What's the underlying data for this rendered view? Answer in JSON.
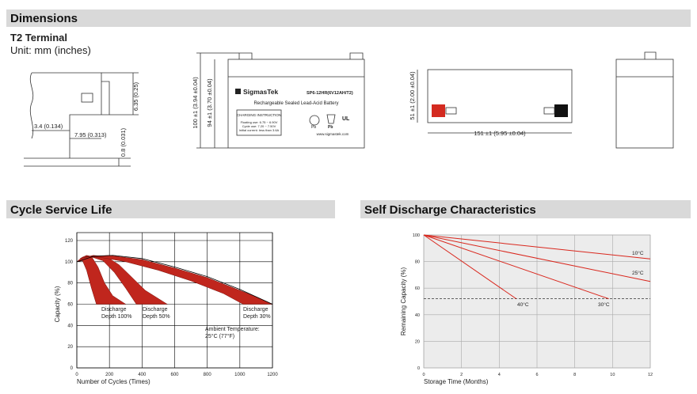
{
  "dimensions": {
    "title": "Dimensions",
    "terminal": "T2 Terminal",
    "unit": "Unit: mm (inches)",
    "labels": {
      "tab_height": "6.35 (0.25)",
      "tab_offset": "3.4 (0.134)",
      "tab_width": "7.95 (0.313)",
      "tab_thickness": "0.8 (0.031)",
      "total_height": "100 ±1 (3.94 ±0.04)",
      "case_height": "94 ±1 (3.70 ±0.04)",
      "width": "51 ±1 (2.00 ±0.04)",
      "length": "151 ±1 (5.95 ±0.04)"
    },
    "battery_label": {
      "brand": "SigmasTek",
      "model": "SP6-12HR(6V12AH/T2)",
      "description": "Rechargeable Sealed Lead-Acid Battery",
      "charging_title": "CHARGING INSTRUCTION",
      "charging_lines": [
        "Floating use: 6.75 ~ 6.90V",
        "Cycle use: 7.20 ~ 7.50V",
        "Initial current: less than 3.6A"
      ],
      "pb": "Pb",
      "website": "www.sigmastek.com"
    }
  },
  "chart_data": [
    {
      "type": "band",
      "title": "Cycle Service Life",
      "x_label": "Number of Cycles (Times)",
      "y_label": "Capacity (%)",
      "xlim": [
        0,
        1200
      ],
      "ylim": [
        0,
        120
      ],
      "xticks": [
        0,
        200,
        400,
        600,
        800,
        1000,
        1200
      ],
      "yticks": [
        0,
        20,
        40,
        60,
        80,
        100,
        120
      ],
      "grid": true,
      "series": [
        {
          "color": "#c0261d",
          "x": [
            0,
            30,
            60,
            90,
            130,
            170,
            220,
            300,
            120,
            90,
            60,
            35
          ],
          "y": [
            100,
            104,
            106,
            105,
            95,
            80,
            68,
            60,
            60,
            75,
            92,
            101
          ]
        },
        {
          "color": "#c0261d",
          "x": [
            20,
            100,
            180,
            260,
            340,
            420,
            555,
            365,
            300,
            230,
            160,
            80
          ],
          "y": [
            103,
            106,
            105,
            97,
            85,
            73,
            60,
            60,
            75,
            90,
            101,
            105
          ]
        },
        {
          "color": "#c0261d",
          "x": [
            50,
            200,
            400,
            600,
            800,
            950,
            1100,
            1200,
            1020,
            900,
            700,
            500,
            300,
            150
          ],
          "y": [
            105,
            106,
            102,
            94,
            85,
            76,
            67,
            60,
            60,
            70,
            82,
            92,
            100,
            104
          ]
        }
      ],
      "envelope": {
        "color": "#000000",
        "x": [
          0,
          100,
          220,
          400,
          600,
          800,
          1000,
          1200
        ],
        "y": [
          100,
          105,
          106,
          103,
          95,
          86,
          74,
          60
        ]
      },
      "annotations": [
        [
          "Discharge",
          "Depth 100%"
        ],
        [
          "Discharge",
          "Depth 50%"
        ],
        [
          "Discharge",
          "Depth 30%"
        ],
        [
          "Ambient Temperature:",
          "25°C (77°F)"
        ]
      ]
    },
    {
      "type": "line",
      "title": "Self Discharge Characteristics",
      "x_label": "Storage Time (Months)",
      "y_label": "Remaining Capacity (%)",
      "xlim": [
        0,
        12
      ],
      "ylim": [
        0,
        100
      ],
      "xticks": [
        0,
        2,
        4,
        6,
        8,
        10,
        12
      ],
      "yticks": [
        0,
        20,
        40,
        60,
        80,
        100
      ],
      "grid": true,
      "reference_line": 52,
      "series": [
        {
          "name": "10°C",
          "color": "#d9261c",
          "x": [
            0,
            12
          ],
          "values": [
            100,
            82
          ]
        },
        {
          "name": "25°C",
          "color": "#d9261c",
          "x": [
            0,
            12
          ],
          "values": [
            100,
            65
          ]
        },
        {
          "name": "30°C",
          "color": "#d9261c",
          "x": [
            0,
            9.8
          ],
          "values": [
            100,
            52
          ]
        },
        {
          "name": "40°C",
          "color": "#d9261c",
          "x": [
            0,
            4.9
          ],
          "values": [
            100,
            52
          ]
        }
      ]
    }
  ]
}
